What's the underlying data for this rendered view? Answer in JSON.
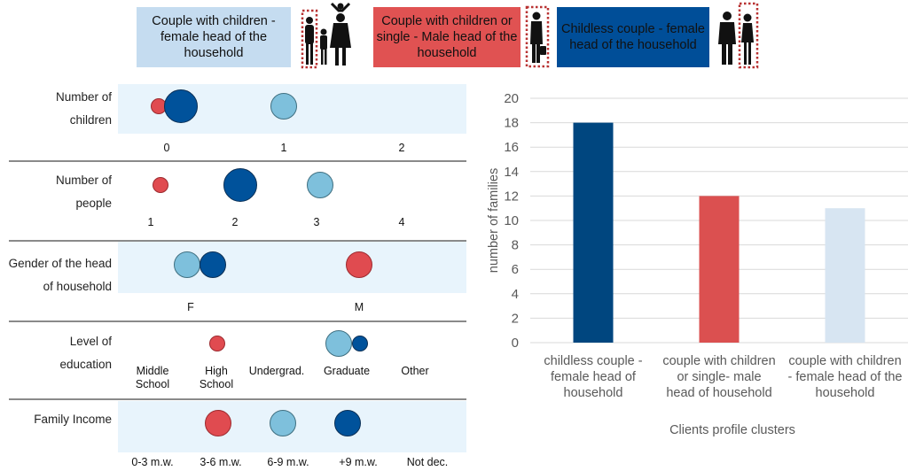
{
  "colors": {
    "dark_blue": "#00529b",
    "red": "#e04b50",
    "light_blue": "#7ec0dc",
    "pale_blue": "#d7e5f2",
    "band": "#e8f4fc"
  },
  "legend": [
    {
      "label": "Couple with children - female head of the household",
      "color": "#c5dcf0",
      "text_color": "#111",
      "icon": "family-silhouette-icon"
    },
    {
      "label": "Couple with children or single - Male head of the household",
      "color": "#e05252",
      "text_color": "#111",
      "icon": "man-with-bag-silhouette-icon"
    },
    {
      "label": "Childless couple - female head of the household",
      "color": "#004e98",
      "text_color": "#111",
      "icon": "couple-silhouette-icon"
    }
  ],
  "profile_rows": [
    {
      "label": "Number of children",
      "ticks": [
        "0",
        "1",
        "2"
      ]
    },
    {
      "label": "Number of people",
      "ticks": [
        "1",
        "2",
        "3",
        "4"
      ]
    },
    {
      "label": "Gender of the head of household",
      "ticks": [
        "F",
        "M"
      ]
    },
    {
      "label": "Level of education",
      "ticks": [
        "Middle School",
        "High School",
        "Undergrad.",
        "Graduate",
        "Other"
      ]
    },
    {
      "label": "Family Income",
      "ticks": [
        "0-3 m.w.",
        "3-6 m.w.",
        "6-9 m.w.",
        "+9 m.w.",
        "Not dec."
      ]
    }
  ],
  "chart_data": [
    {
      "type": "scatter",
      "title": "Profile bubble matrix",
      "series": [
        {
          "name": "Couple with children or single - Male head",
          "color": "#e04b50",
          "points": [
            {
              "row": "Number of children",
              "category": "0",
              "relative_size": "small"
            },
            {
              "row": "Number of people",
              "category": "1",
              "relative_size": "small"
            },
            {
              "row": "Gender of the head of household",
              "category": "M",
              "relative_size": "medium"
            },
            {
              "row": "Level of education",
              "category": "High School",
              "relative_size": "small"
            },
            {
              "row": "Family Income",
              "category": "3-6 m.w.",
              "relative_size": "medium"
            }
          ]
        },
        {
          "name": "Childless couple - female head",
          "color": "#00529b",
          "points": [
            {
              "row": "Number of children",
              "category": "0",
              "relative_size": "large"
            },
            {
              "row": "Number of people",
              "category": "2",
              "relative_size": "large"
            },
            {
              "row": "Gender of the head of household",
              "category": "F",
              "relative_size": "medium"
            },
            {
              "row": "Level of education",
              "category": "Graduate",
              "relative_size": "small"
            },
            {
              "row": "Family Income",
              "category": "+9 m.w.",
              "relative_size": "medium"
            }
          ]
        },
        {
          "name": "Couple with children - female head",
          "color": "#7ec0dc",
          "points": [
            {
              "row": "Number of children",
              "category": "1",
              "relative_size": "medium"
            },
            {
              "row": "Number of people",
              "category": "3",
              "relative_size": "medium"
            },
            {
              "row": "Gender of the head of household",
              "category": "F",
              "relative_size": "medium"
            },
            {
              "row": "Level of education",
              "category": "Graduate",
              "relative_size": "medium"
            },
            {
              "row": "Family Income",
              "category": "6-9 m.w.",
              "relative_size": "medium"
            }
          ]
        }
      ]
    },
    {
      "type": "bar",
      "title": "",
      "categories": [
        "childless couple - female head of household",
        "couple with children or single- male head of household",
        "couple with children - female head of the household"
      ],
      "category_lines": [
        [
          "childless couple -",
          "female head of",
          "household"
        ],
        [
          "couple with children",
          "or single- male",
          "head of household"
        ],
        [
          "couple with children",
          "- female head of the",
          "household"
        ]
      ],
      "values": [
        18,
        12,
        11
      ],
      "colors": [
        "#00467f",
        "#db5050",
        "#d7e5f2"
      ],
      "xlabel": "Clients profile clusters",
      "ylabel": "number of families",
      "ylim": [
        0,
        20
      ],
      "yticks": [
        0,
        2,
        4,
        6,
        8,
        10,
        12,
        14,
        16,
        18,
        20
      ],
      "grid": true
    }
  ]
}
